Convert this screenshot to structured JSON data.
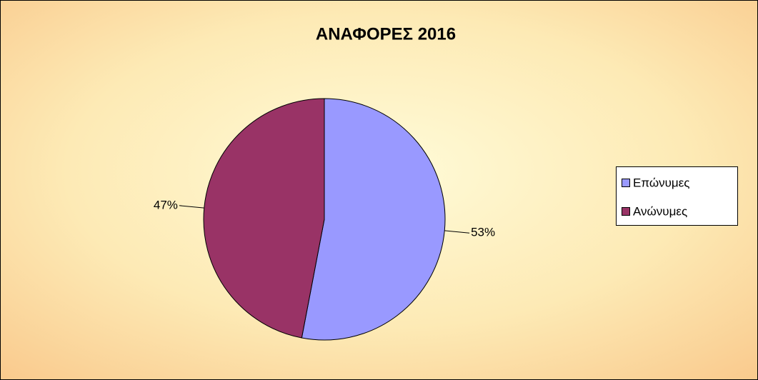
{
  "chart_data": {
    "type": "pie",
    "title": "ΑΝΑΦΟΡΕΣ 2016",
    "categories": [
      "Επώνυμες",
      "Ανώνυμες"
    ],
    "values": [
      53,
      47
    ],
    "value_labels": [
      "53%",
      "47%"
    ],
    "colors": [
      "#9999ff",
      "#993366"
    ],
    "legend": "right"
  }
}
